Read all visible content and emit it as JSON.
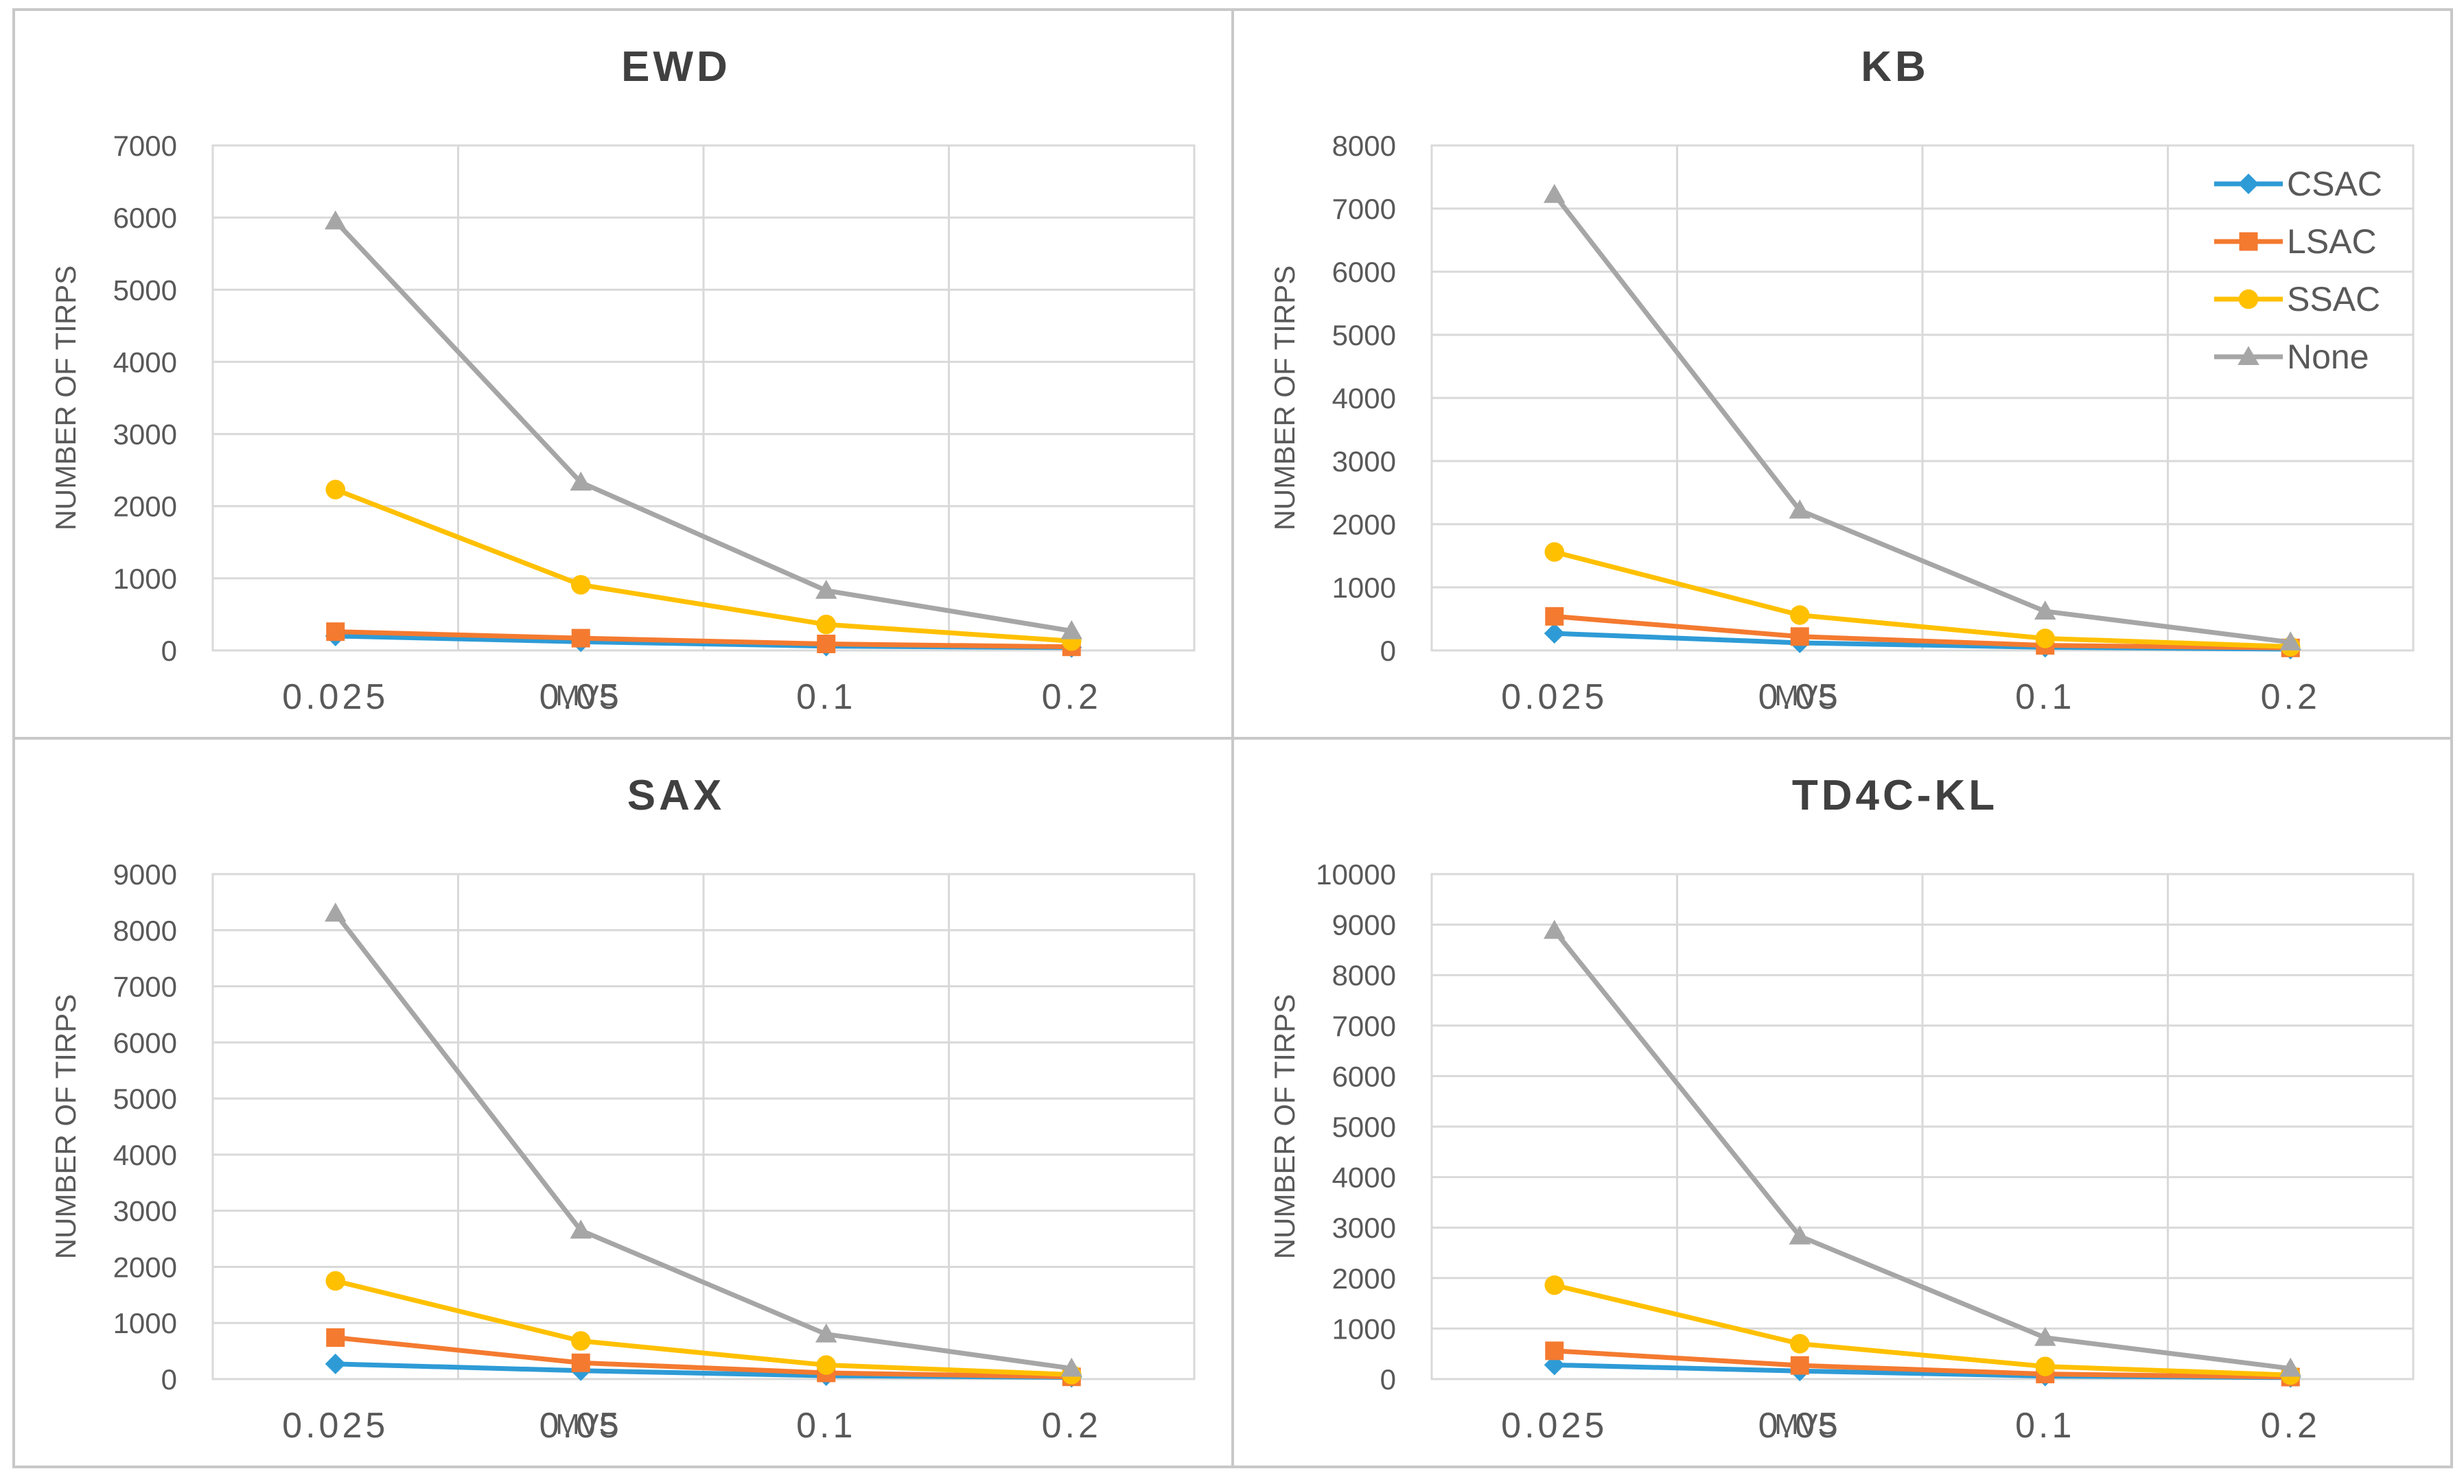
{
  "colors": {
    "CSAC": "#2e9bd6",
    "LSAC": "#f47a30",
    "SSAC": "#ffc000",
    "None": "#a6a6a6",
    "grid": "#d9d9d9",
    "panel_border": "#c8c8c8",
    "text": "#595959",
    "title": "#404040"
  },
  "series_meta": [
    {
      "name": "CSAC",
      "marker": "diamond-icon"
    },
    {
      "name": "LSAC",
      "marker": "square-icon"
    },
    {
      "name": "SSAC",
      "marker": "circle-icon"
    },
    {
      "name": "None",
      "marker": "triangle-icon"
    }
  ],
  "chart_data": [
    {
      "type": "line",
      "title": "EWD",
      "xlabel": "MVS",
      "ylabel": "NUMBER OF TIRPS",
      "categories": [
        "0.025",
        "0.05",
        "0.1",
        "0.2"
      ],
      "ylim": [
        0,
        7000
      ],
      "yticks": [
        "0",
        "1000",
        "2000",
        "3000",
        "4000",
        "5000",
        "6000",
        "7000"
      ],
      "grid": true,
      "legend": "none",
      "series": [
        {
          "name": "CSAC",
          "values": [
            200,
            120,
            60,
            40
          ]
        },
        {
          "name": "LSAC",
          "values": [
            260,
            170,
            90,
            50
          ]
        },
        {
          "name": "SSAC",
          "values": [
            2230,
            910,
            360,
            130
          ]
        },
        {
          "name": "None",
          "values": [
            5950,
            2330,
            830,
            270
          ]
        }
      ]
    },
    {
      "type": "line",
      "title": "KB",
      "xlabel": "MVS",
      "ylabel": "NUMBER OF TIRPS",
      "categories": [
        "0.025",
        "0.05",
        "0.1",
        "0.2"
      ],
      "ylim": [
        0,
        8000
      ],
      "yticks": [
        "0",
        "1000",
        "2000",
        "3000",
        "4000",
        "5000",
        "6000",
        "7000",
        "8000"
      ],
      "grid": true,
      "legend": "top-right",
      "series": [
        {
          "name": "CSAC",
          "values": [
            270,
            120,
            50,
            20
          ]
        },
        {
          "name": "LSAC",
          "values": [
            540,
            220,
            80,
            40
          ]
        },
        {
          "name": "SSAC",
          "values": [
            1560,
            560,
            190,
            60
          ]
        },
        {
          "name": "None",
          "values": [
            7220,
            2220,
            620,
            130
          ]
        }
      ]
    },
    {
      "type": "line",
      "title": "SAX",
      "xlabel": "MVS",
      "ylabel": "NUMBER OF TIRPS",
      "categories": [
        "0.025",
        "0.05",
        "0.1",
        "0.2"
      ],
      "ylim": [
        0,
        9000
      ],
      "yticks": [
        "0",
        "1000",
        "2000",
        "3000",
        "4000",
        "5000",
        "6000",
        "7000",
        "8000",
        "9000"
      ],
      "grid": true,
      "legend": "none",
      "series": [
        {
          "name": "CSAC",
          "values": [
            270,
            150,
            60,
            30
          ]
        },
        {
          "name": "LSAC",
          "values": [
            740,
            290,
            110,
            40
          ]
        },
        {
          "name": "SSAC",
          "values": [
            1750,
            680,
            250,
            80
          ]
        },
        {
          "name": "None",
          "values": [
            8300,
            2650,
            800,
            190
          ]
        }
      ]
    },
    {
      "type": "line",
      "title": "TD4C-KL",
      "xlabel": "MVS",
      "ylabel": "NUMBER OF TIRPS",
      "categories": [
        "0.025",
        "0.05",
        "0.1",
        "0.2"
      ],
      "ylim": [
        0,
        10000
      ],
      "yticks": [
        "0",
        "1000",
        "2000",
        "3000",
        "4000",
        "5000",
        "6000",
        "7000",
        "8000",
        "9000",
        "10000"
      ],
      "grid": true,
      "legend": "none",
      "series": [
        {
          "name": "CSAC",
          "values": [
            280,
            160,
            60,
            30
          ]
        },
        {
          "name": "LSAC",
          "values": [
            560,
            270,
            100,
            40
          ]
        },
        {
          "name": "SSAC",
          "values": [
            1860,
            700,
            250,
            80
          ]
        },
        {
          "name": "None",
          "values": [
            8880,
            2830,
            820,
            210
          ]
        }
      ]
    }
  ]
}
